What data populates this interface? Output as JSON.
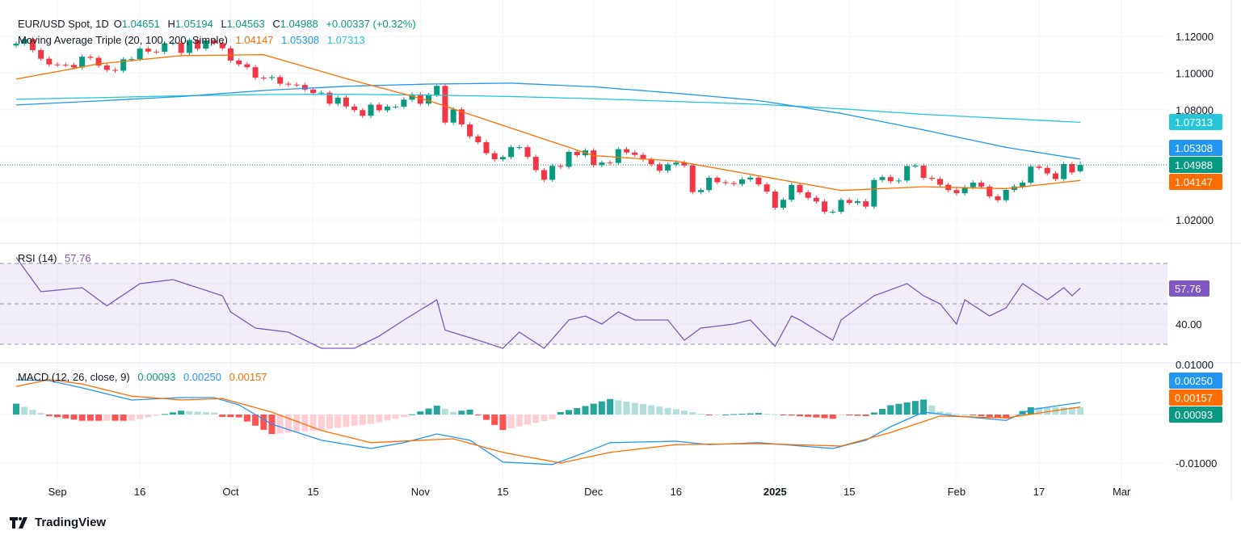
{
  "header": {
    "symbol": "EUR/USD Spot, 1D",
    "open_label": "O",
    "open": "1.04651",
    "high_label": "H",
    "high": "1.05194",
    "low_label": "L",
    "low": "1.04563",
    "close_label": "C",
    "close": "1.04988",
    "change": "+0.00337 (+0.32%)"
  },
  "ma_legend": {
    "title": "Moving Average Triple (20, 100, 200, Simple)",
    "ma20": "1.04147",
    "ma100": "1.05308",
    "ma200": "1.07313"
  },
  "rsi_legend": {
    "title": "RSI (14)",
    "value": "57.76"
  },
  "macd_legend": {
    "title": "MACD (12, 26, close, 9)",
    "hist": "0.00093",
    "macd": "0.00250",
    "signal": "0.00157"
  },
  "footer": {
    "brand": "TradingView"
  },
  "colors": {
    "up": "#089981",
    "down": "#f23645",
    "ma20": "#ff6d00",
    "ma100": "#2196f3",
    "ma200": "#26c6da",
    "rsi": "#7e57c2",
    "macd": "#2196f3",
    "signal": "#ff6d00",
    "hist_up_strong": "#26a69a",
    "hist_up_weak": "#b2dfdb",
    "hist_dn_strong": "#ff5252",
    "hist_dn_weak": "#ffcdd2"
  },
  "chart_data": {
    "type": "candlestick",
    "price_axis": {
      "ticks": [
        "1.12000",
        "1.10000",
        "1.08000",
        "1.02000"
      ],
      "range": [
        1.015,
        1.125
      ]
    },
    "price_badges": [
      "1.07313",
      "1.05308",
      "1.04988",
      "1.04147"
    ],
    "rsi_axis": {
      "ticks": [
        "40.00"
      ],
      "bands": [
        70,
        50,
        30
      ]
    },
    "macd_axis": {
      "ticks": [
        "0.01000",
        "-0.01000"
      ]
    },
    "time_ticks": [
      {
        "label": "Sep",
        "date": "2024-09-02"
      },
      {
        "label": "16",
        "date": "2024-09-16"
      },
      {
        "label": "Oct",
        "date": "2024-10-01"
      },
      {
        "label": "15",
        "date": "2024-10-15"
      },
      {
        "label": "Nov",
        "date": "2024-11-01"
      },
      {
        "label": "15",
        "date": "2024-11-15"
      },
      {
        "label": "Dec",
        "date": "2024-12-02"
      },
      {
        "label": "16",
        "date": "2024-12-16"
      },
      {
        "label": "2025",
        "date": "2025-01-02",
        "bold": true
      },
      {
        "label": "15",
        "date": "2025-01-15"
      },
      {
        "label": "Feb",
        "date": "2025-02-03"
      },
      {
        "label": "17",
        "date": "2025-02-17"
      },
      {
        "label": "Mar",
        "date": "2025-03-03"
      }
    ],
    "dates": [
      "2024-08-26",
      "2024-08-27",
      "2024-08-28",
      "2024-08-29",
      "2024-08-30",
      "2024-09-02",
      "2024-09-03",
      "2024-09-04",
      "2024-09-05",
      "2024-09-06",
      "2024-09-09",
      "2024-09-10",
      "2024-09-11",
      "2024-09-12",
      "2024-09-13",
      "2024-09-16",
      "2024-09-17",
      "2024-09-18",
      "2024-09-19",
      "2024-09-20",
      "2024-09-23",
      "2024-09-24",
      "2024-09-25",
      "2024-09-26",
      "2024-09-27",
      "2024-09-30",
      "2024-10-01",
      "2024-10-02",
      "2024-10-03",
      "2024-10-04",
      "2024-10-07",
      "2024-10-08",
      "2024-10-09",
      "2024-10-10",
      "2024-10-11",
      "2024-10-14",
      "2024-10-15",
      "2024-10-16",
      "2024-10-17",
      "2024-10-18",
      "2024-10-21",
      "2024-10-22",
      "2024-10-23",
      "2024-10-24",
      "2024-10-25",
      "2024-10-28",
      "2024-10-29",
      "2024-10-30",
      "2024-10-31",
      "2024-11-01",
      "2024-11-04",
      "2024-11-05",
      "2024-11-06",
      "2024-11-07",
      "2024-11-08",
      "2024-11-11",
      "2024-11-12",
      "2024-11-13",
      "2024-11-14",
      "2024-11-15",
      "2024-11-18",
      "2024-11-19",
      "2024-11-20",
      "2024-11-21",
      "2024-11-22",
      "2024-11-25",
      "2024-11-26",
      "2024-11-27",
      "2024-11-28",
      "2024-11-29",
      "2024-12-02",
      "2024-12-03",
      "2024-12-04",
      "2024-12-05",
      "2024-12-06",
      "2024-12-09",
      "2024-12-10",
      "2024-12-11",
      "2024-12-12",
      "2024-12-13",
      "2024-12-16",
      "2024-12-17",
      "2024-12-18",
      "2024-12-19",
      "2024-12-20",
      "2024-12-23",
      "2024-12-24",
      "2024-12-25",
      "2024-12-26",
      "2024-12-27",
      "2024-12-30",
      "2024-12-31",
      "2025-01-02",
      "2025-01-03",
      "2025-01-06",
      "2025-01-07",
      "2025-01-08",
      "2025-01-09",
      "2025-01-10",
      "2025-01-13",
      "2025-01-14",
      "2025-01-15",
      "2025-01-16",
      "2025-01-17",
      "2025-01-20",
      "2025-01-21",
      "2025-01-22",
      "2025-01-23",
      "2025-01-24",
      "2025-01-27",
      "2025-01-28",
      "2025-01-29",
      "2025-01-30",
      "2025-01-31",
      "2025-02-03",
      "2025-02-04",
      "2025-02-05",
      "2025-02-06",
      "2025-02-07",
      "2025-02-10",
      "2025-02-11",
      "2025-02-12",
      "2025-02-13",
      "2025-02-14",
      "2025-02-17",
      "2025-02-18",
      "2025-02-19",
      "2025-02-20",
      "2025-02-21",
      "2025-02-24"
    ],
    "close": [
      1.116,
      1.1185,
      1.1125,
      1.1078,
      1.1047,
      1.1045,
      1.1044,
      1.1031,
      1.1089,
      1.1083,
      1.1041,
      1.1017,
      1.1013,
      1.1075,
      1.1076,
      1.1133,
      1.1117,
      1.1116,
      1.1162,
      1.1164,
      1.111,
      1.118,
      1.1133,
      1.1178,
      1.1163,
      1.1135,
      1.1068,
      1.1048,
      1.1032,
      1.0975,
      1.0973,
      1.0978,
      1.0942,
      1.0937,
      1.0935,
      1.091,
      1.0891,
      1.0893,
      1.0833,
      1.0866,
      1.0818,
      1.0798,
      1.0767,
      1.0828,
      1.0797,
      1.0817,
      1.0817,
      1.0855,
      1.0884,
      1.0833,
      1.088,
      1.093,
      1.073,
      1.0802,
      1.072,
      1.0655,
      1.0623,
      1.0563,
      1.053,
      1.0542,
      1.0596,
      1.0596,
      1.0543,
      1.0471,
      1.0418,
      1.0494,
      1.0489,
      1.057,
      1.0552,
      1.0578,
      1.0498,
      1.0512,
      1.051,
      1.0585,
      1.0567,
      1.0554,
      1.0529,
      1.0503,
      1.0468,
      1.0502,
      1.0512,
      1.0496,
      1.0351,
      1.0362,
      1.0429,
      1.0405,
      1.04,
      1.0395,
      1.042,
      1.043,
      1.0393,
      1.0354,
      1.0266,
      1.0309,
      1.039,
      1.035,
      1.032,
      1.03,
      1.0244,
      1.0244,
      1.0308,
      1.0292,
      1.0301,
      1.0272,
      1.0417,
      1.0433,
      1.041,
      1.0414,
      1.0493,
      1.0495,
      1.0429,
      1.0423,
      1.0391,
      1.0362,
      1.0345,
      1.0378,
      1.0403,
      1.0381,
      1.0328,
      1.0307,
      1.0363,
      1.0382,
      1.0403,
      1.049,
      1.0483,
      1.0453,
      1.0422,
      1.0504,
      1.0458,
      1.04988
    ],
    "last_bar": {
      "open": 1.04651,
      "high": 1.05194,
      "low": 1.04563,
      "close": 1.04988
    },
    "ma20": [
      [
        "2024-08-26",
        1.0967
      ],
      [
        "2024-09-09",
        1.105
      ],
      [
        "2024-09-23",
        1.1095
      ],
      [
        "2024-10-07",
        1.11
      ],
      [
        "2024-10-21",
        1.097
      ],
      [
        "2024-11-04",
        1.085
      ],
      [
        "2024-11-18",
        1.07
      ],
      [
        "2024-12-02",
        1.055
      ],
      [
        "2024-12-16",
        1.052
      ],
      [
        "2024-12-30",
        1.044
      ],
      [
        "2025-01-14",
        1.036
      ],
      [
        "2025-01-28",
        1.038
      ],
      [
        "2025-02-11",
        1.037
      ],
      [
        "2025-02-24",
        1.04147
      ]
    ],
    "ma100": [
      [
        "2024-08-26",
        1.0826
      ],
      [
        "2024-09-09",
        1.0848
      ],
      [
        "2024-09-23",
        1.0872
      ],
      [
        "2024-10-07",
        1.0905
      ],
      [
        "2024-10-21",
        1.0928
      ],
      [
        "2024-11-04",
        1.094
      ],
      [
        "2024-11-18",
        1.0945
      ],
      [
        "2024-12-02",
        1.0925
      ],
      [
        "2024-12-16",
        1.089
      ],
      [
        "2024-12-30",
        1.085
      ],
      [
        "2025-01-14",
        1.078
      ],
      [
        "2025-01-28",
        1.069
      ],
      [
        "2025-02-11",
        1.0595
      ],
      [
        "2025-02-24",
        1.05308
      ]
    ],
    "ma200": [
      [
        "2024-08-26",
        1.0857
      ],
      [
        "2024-09-09",
        1.0866
      ],
      [
        "2024-09-23",
        1.0876
      ],
      [
        "2024-10-07",
        1.0883
      ],
      [
        "2024-10-21",
        1.0884
      ],
      [
        "2024-11-04",
        1.088
      ],
      [
        "2024-11-18",
        1.0872
      ],
      [
        "2024-12-02",
        1.086
      ],
      [
        "2024-12-16",
        1.0845
      ],
      [
        "2024-12-30",
        1.083
      ],
      [
        "2025-01-14",
        1.0805
      ],
      [
        "2025-01-28",
        1.0775
      ],
      [
        "2025-02-11",
        1.0752
      ],
      [
        "2025-02-24",
        1.07313
      ]
    ],
    "rsi": [
      [
        "2024-08-26",
        73
      ],
      [
        "2024-08-29",
        56
      ],
      [
        "2024-09-05",
        58
      ],
      [
        "2024-09-10",
        49
      ],
      [
        "2024-09-16",
        60
      ],
      [
        "2024-09-20",
        62
      ],
      [
        "2024-09-25",
        58
      ],
      [
        "2024-09-30",
        54
      ],
      [
        "2024-10-01",
        46
      ],
      [
        "2024-10-04",
        38
      ],
      [
        "2024-10-10",
        36
      ],
      [
        "2024-10-16",
        28
      ],
      [
        "2024-10-22",
        28
      ],
      [
        "2024-10-25",
        34
      ],
      [
        "2024-10-30",
        42
      ],
      [
        "2024-11-05",
        52
      ],
      [
        "2024-11-06",
        37
      ],
      [
        "2024-11-12",
        32
      ],
      [
        "2024-11-15",
        28
      ],
      [
        "2024-11-19",
        36
      ],
      [
        "2024-11-22",
        28
      ],
      [
        "2024-11-27",
        42
      ],
      [
        "2024-11-29",
        44
      ],
      [
        "2024-12-03",
        40
      ],
      [
        "2024-12-05",
        46
      ],
      [
        "2024-12-09",
        42
      ],
      [
        "2024-12-13",
        42
      ],
      [
        "2024-12-17",
        32
      ],
      [
        "2024-12-19",
        38
      ],
      [
        "2024-12-25",
        40
      ],
      [
        "2024-12-27",
        42
      ],
      [
        "2025-01-02",
        29
      ],
      [
        "2025-01-06",
        44
      ],
      [
        "2025-01-07",
        42
      ],
      [
        "2025-01-13",
        32
      ],
      [
        "2025-01-14",
        42
      ],
      [
        "2025-01-20",
        54
      ],
      [
        "2025-01-24",
        60
      ],
      [
        "2025-01-28",
        54
      ],
      [
        "2025-01-30",
        50
      ],
      [
        "2025-02-03",
        40
      ],
      [
        "2025-02-04",
        52
      ],
      [
        "2025-02-07",
        44
      ],
      [
        "2025-02-11",
        48
      ],
      [
        "2025-02-13",
        60
      ],
      [
        "2025-02-18",
        52
      ],
      [
        "2025-02-20",
        58
      ],
      [
        "2025-02-21",
        54
      ],
      [
        "2025-02-24",
        57.76
      ]
    ],
    "macd": [
      [
        "2024-08-26",
        0.0072
      ],
      [
        "2024-08-30",
        0.007
      ],
      [
        "2024-09-05",
        0.0055
      ],
      [
        "2024-09-13",
        0.003
      ],
      [
        "2024-09-23",
        0.0035
      ],
      [
        "2024-09-27",
        0.0035
      ],
      [
        "2024-10-02",
        0.002
      ],
      [
        "2024-10-08",
        -0.002
      ],
      [
        "2024-10-16",
        -0.0053
      ],
      [
        "2024-10-24",
        -0.007
      ],
      [
        "2024-10-30",
        -0.0058
      ],
      [
        "2024-11-05",
        -0.004
      ],
      [
        "2024-11-11",
        -0.0053
      ],
      [
        "2024-11-15",
        -0.0098
      ],
      [
        "2024-11-25",
        -0.0103
      ],
      [
        "2024-11-29",
        -0.0078
      ],
      [
        "2024-12-04",
        -0.0058
      ],
      [
        "2024-12-16",
        -0.0055
      ],
      [
        "2024-12-20",
        -0.0062
      ],
      [
        "2024-12-30",
        -0.0058
      ],
      [
        "2025-01-13",
        -0.007
      ],
      [
        "2025-01-17",
        -0.0053
      ],
      [
        "2025-01-22",
        -0.0025
      ],
      [
        "2025-01-28",
        0.0005
      ],
      [
        "2025-02-03",
        -0.0003
      ],
      [
        "2025-02-11",
        -0.0012
      ],
      [
        "2025-02-14",
        0.001
      ],
      [
        "2025-02-24",
        0.0025
      ]
    ],
    "signal": [
      [
        "2024-08-26",
        0.0058
      ],
      [
        "2024-08-30",
        0.0072
      ],
      [
        "2024-09-05",
        0.0063
      ],
      [
        "2024-09-13",
        0.0038
      ],
      [
        "2024-09-23",
        0.003
      ],
      [
        "2024-09-30",
        0.0033
      ],
      [
        "2024-10-08",
        0.0005
      ],
      [
        "2024-10-16",
        -0.0033
      ],
      [
        "2024-10-24",
        -0.0058
      ],
      [
        "2024-11-01",
        -0.0053
      ],
      [
        "2024-11-07",
        -0.005
      ],
      [
        "2024-11-15",
        -0.0078
      ],
      [
        "2024-11-26",
        -0.01
      ],
      [
        "2024-12-04",
        -0.0078
      ],
      [
        "2024-12-16",
        -0.0062
      ],
      [
        "2024-12-30",
        -0.006
      ],
      [
        "2025-01-14",
        -0.0065
      ],
      [
        "2025-01-22",
        -0.0037
      ],
      [
        "2025-01-30",
        -0.0003
      ],
      [
        "2025-02-11",
        -0.0007
      ],
      [
        "2025-02-24",
        0.00157
      ]
    ]
  }
}
